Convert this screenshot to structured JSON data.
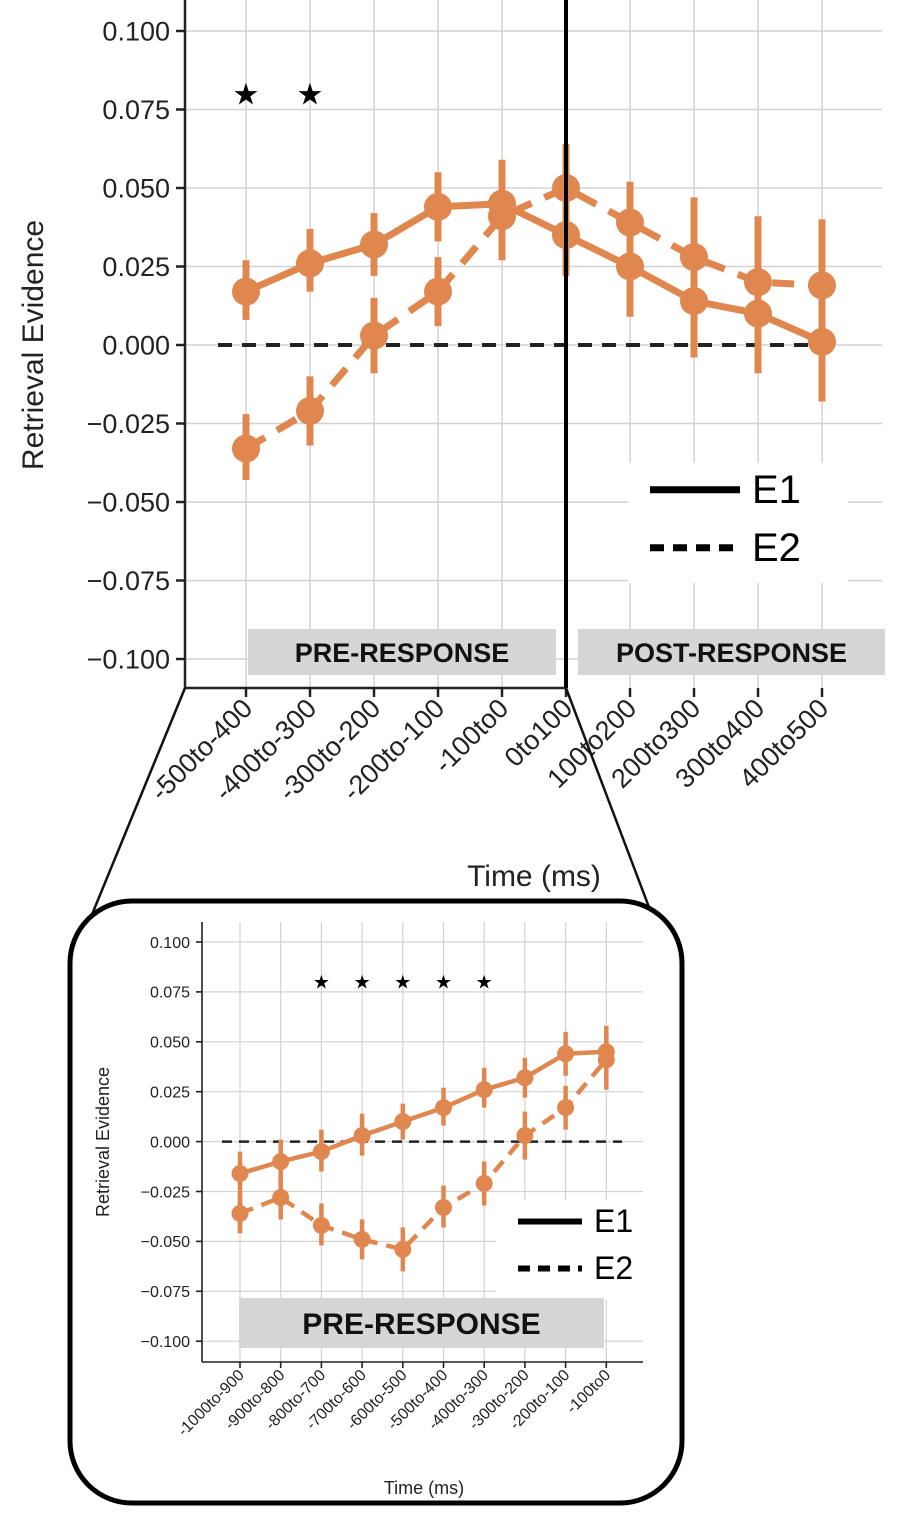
{
  "chart_data": [
    {
      "type": "line",
      "xlabel": "Time (ms)",
      "ylabel": "Retrieval Evidence",
      "categories": [
        "-500to-400",
        "-400to-300",
        "-300to-200",
        "-200to-100",
        "-100to0",
        "0to100",
        "100to200",
        "200to300",
        "300to400",
        "400to500"
      ],
      "yticks": [
        "0.100",
        "0.075",
        "0.050",
        "0.025",
        "0.000",
        "−0.025",
        "−0.050",
        "−0.075",
        "−0.100"
      ],
      "ylim": [
        -0.105,
        0.105
      ],
      "grid": true,
      "color": "#E0864F",
      "zero_line": 0.0,
      "series": [
        {
          "name": "E1",
          "style": "solid",
          "values": [
            0.017,
            0.026,
            0.032,
            0.044,
            0.045,
            0.035,
            0.025,
            0.014,
            0.01,
            0.001
          ],
          "err_low": [
            0.008,
            0.017,
            0.022,
            0.033,
            0.033,
            0.022,
            0.009,
            -0.004,
            -0.009,
            -0.018
          ],
          "err_high": [
            0.027,
            0.037,
            0.042,
            0.055,
            0.059,
            0.052,
            0.042,
            0.033,
            0.028,
            0.019
          ]
        },
        {
          "name": "E2",
          "style": "dashed",
          "values": [
            -0.033,
            -0.021,
            0.003,
            0.017,
            0.041,
            0.05,
            0.039,
            0.028,
            0.02,
            0.019
          ],
          "err_low": [
            -0.043,
            -0.032,
            -0.009,
            0.006,
            0.027,
            0.036,
            0.025,
            0.008,
            -0.001,
            -0.002
          ],
          "err_high": [
            -0.022,
            -0.01,
            0.015,
            0.028,
            0.055,
            0.064,
            0.052,
            0.047,
            0.041,
            0.04
          ]
        }
      ],
      "star_categories": [
        "-500to-400",
        "-400to-300"
      ],
      "star_y": 0.08,
      "star_symbol": "★",
      "regions": [
        {
          "label": "PRE-RESPONSE",
          "from": "-500to-400",
          "to": "-100to0"
        },
        {
          "label": "POST-RESPONSE",
          "from": "0to100",
          "to": "400to500"
        }
      ],
      "legend": {
        "position": "lower-right",
        "entries": [
          "E1",
          "E2"
        ]
      }
    },
    {
      "type": "line",
      "xlabel": "Time (ms)",
      "ylabel": "Retrieval Evidence",
      "categories": [
        "-1000to-900",
        "-900to-800",
        "-800to-700",
        "-700to-600",
        "-600to-500",
        "-500to-400",
        "-400to-300",
        "-300to-200",
        "-200to-100",
        "-100to0"
      ],
      "yticks": [
        "0.100",
        "0.075",
        "0.050",
        "0.025",
        "0.000",
        "−0.025",
        "−0.050",
        "−0.075",
        "−0.100"
      ],
      "ylim": [
        -0.11,
        0.11
      ],
      "grid": true,
      "color": "#E0864F",
      "zero_line": 0.0,
      "series": [
        {
          "name": "E1",
          "style": "solid",
          "values": [
            -0.016,
            -0.01,
            -0.005,
            0.003,
            0.01,
            0.017,
            0.026,
            0.032,
            0.044,
            0.045
          ],
          "err_low": [
            -0.045,
            -0.021,
            -0.015,
            -0.007,
            0.001,
            0.008,
            0.017,
            0.022,
            0.033,
            0.033
          ],
          "err_high": [
            -0.005,
            0.001,
            0.006,
            0.014,
            0.019,
            0.027,
            0.037,
            0.042,
            0.055,
            0.058
          ]
        },
        {
          "name": "E2",
          "style": "dashed",
          "values": [
            -0.036,
            -0.028,
            -0.042,
            -0.049,
            -0.054,
            -0.033,
            -0.021,
            0.003,
            0.017,
            0.041
          ],
          "err_low": [
            -0.046,
            -0.039,
            -0.052,
            -0.059,
            -0.065,
            -0.043,
            -0.032,
            -0.009,
            0.006,
            0.026
          ],
          "err_high": [
            -0.025,
            -0.017,
            -0.031,
            -0.039,
            -0.043,
            -0.022,
            -0.01,
            0.015,
            0.028,
            0.055
          ]
        }
      ],
      "star_categories": [
        "-800to-700",
        "-700to-600",
        "-600to-500",
        "-500to-400",
        "-400to-300"
      ],
      "star_y": 0.08,
      "star_symbol": "★",
      "regions": [
        {
          "label": "PRE-RESPONSE",
          "from": "-1000to-900",
          "to": "-100to0"
        }
      ],
      "legend": {
        "position": "lower-right",
        "entries": [
          "E1",
          "E2"
        ]
      }
    }
  ]
}
